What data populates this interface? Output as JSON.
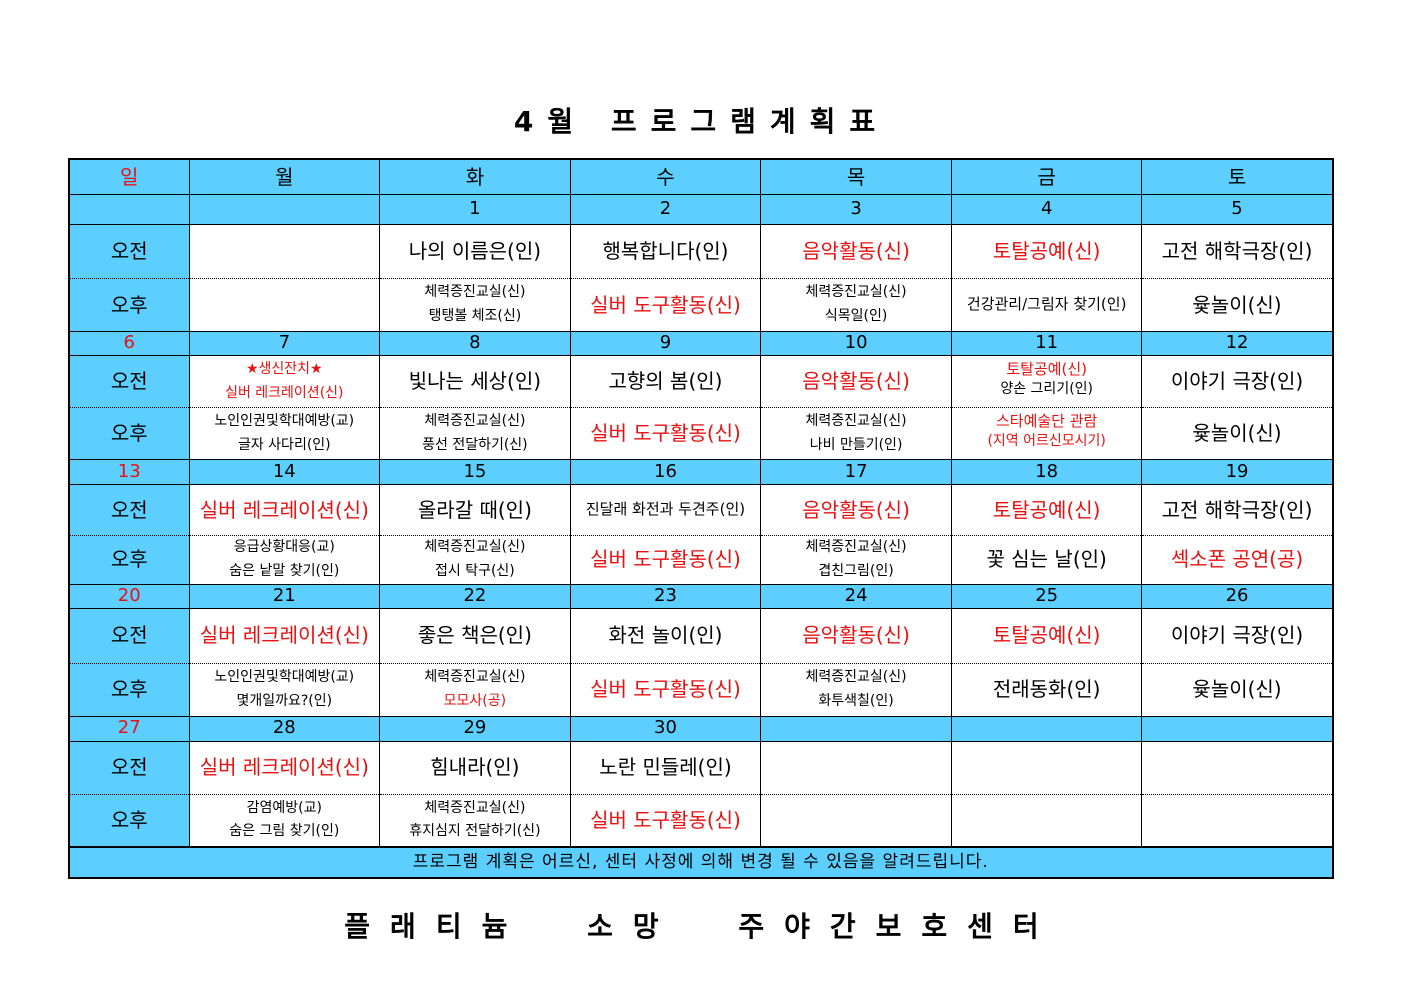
{
  "title": "4월 프로그램계획표",
  "organization": "플래티늄 소망 주야간보호센터",
  "colors": {
    "header_bg": "#5ccfff",
    "accent_red": "#e81010"
  },
  "days": [
    "일",
    "월",
    "화",
    "수",
    "목",
    "금",
    "토"
  ],
  "slot_labels": {
    "am": "오전",
    "pm": "오후"
  },
  "weeks": [
    {
      "dates": [
        "",
        "",
        "1",
        "2",
        "3",
        "4",
        "5"
      ],
      "am": [
        [],
        [],
        [
          {
            "text": "나의 이름은(인)"
          }
        ],
        [
          {
            "text": "행복합니다(인)"
          }
        ],
        [
          {
            "text": "음악활동(신)",
            "red": true
          }
        ],
        [
          {
            "text": "토탈공예(신)",
            "red": true
          }
        ],
        [
          {
            "text": "고전 해학극장(인)"
          }
        ]
      ],
      "pm": [
        [],
        [],
        [
          {
            "text": "체력증진교실(신)"
          },
          {
            "text": "탱탱볼 체조(신)"
          }
        ],
        [
          {
            "text": "실버 도구활동(신)",
            "red": true
          }
        ],
        [
          {
            "text": "체력증진교실(신)"
          },
          {
            "text": "식목일(인)"
          }
        ],
        [
          {
            "text": "건강관리/그림자 찾기(인)",
            "small": true
          }
        ],
        [
          {
            "text": "윷놀이(신)"
          }
        ]
      ]
    },
    {
      "dates": [
        "6",
        "7",
        "8",
        "9",
        "10",
        "11",
        "12"
      ],
      "am": [
        [],
        [
          {
            "text": "★생신잔치★",
            "red": true
          },
          {
            "text": "실버 레크레이션(신)",
            "red": true
          }
        ],
        [
          {
            "text": "빛나는 세상(인)"
          }
        ],
        [
          {
            "text": "고향의 봄(인)"
          }
        ],
        [
          {
            "text": "음악활동(신)",
            "red": true
          }
        ],
        [
          {
            "text": "토탈공예(신)",
            "red": true
          },
          {
            "text": "양손 그리기(인)"
          }
        ],
        [
          {
            "text": "이야기 극장(인)"
          }
        ]
      ],
      "pm": [
        [],
        [
          {
            "text": "노인인권및학대예방(교)"
          },
          {
            "text": "글자 사다리(인)"
          }
        ],
        [
          {
            "text": "체력증진교실(신)"
          },
          {
            "text": "풍선 전달하기(신)"
          }
        ],
        [
          {
            "text": "실버 도구활동(신)",
            "red": true
          }
        ],
        [
          {
            "text": "체력증진교실(신)"
          },
          {
            "text": "나비 만들기(인)"
          }
        ],
        [
          {
            "text": "스타예술단 관람",
            "red": true
          },
          {
            "text": "(지역 어르신모시기)",
            "red": true
          }
        ],
        [
          {
            "text": "윷놀이(신)"
          }
        ]
      ]
    },
    {
      "dates": [
        "13",
        "14",
        "15",
        "16",
        "17",
        "18",
        "19"
      ],
      "am": [
        [],
        [
          {
            "text": "실버 레크레이션(신)",
            "red": true
          }
        ],
        [
          {
            "text": "올라갈 때(인)"
          }
        ],
        [
          {
            "text": "진달래 화전과 두견주(인)",
            "small": true
          }
        ],
        [
          {
            "text": "음악활동(신)",
            "red": true
          }
        ],
        [
          {
            "text": "토탈공예(신)",
            "red": true
          }
        ],
        [
          {
            "text": "고전 해학극장(인)"
          }
        ]
      ],
      "pm": [
        [],
        [
          {
            "text": "응급상황대응(교)"
          },
          {
            "text": "숨은 낱말 찾기(인)"
          }
        ],
        [
          {
            "text": "체력증진교실(신)"
          },
          {
            "text": "접시 탁구(신)"
          }
        ],
        [
          {
            "text": "실버 도구활동(신)",
            "red": true
          }
        ],
        [
          {
            "text": "체력증진교실(신)"
          },
          {
            "text": "겹친그림(인)"
          }
        ],
        [
          {
            "text": "꽃 심는 날(인)"
          }
        ],
        [
          {
            "text": "섹소폰 공연(공)",
            "red": true
          }
        ]
      ]
    },
    {
      "dates": [
        "20",
        "21",
        "22",
        "23",
        "24",
        "25",
        "26"
      ],
      "am": [
        [],
        [
          {
            "text": "실버 레크레이션(신)",
            "red": true
          }
        ],
        [
          {
            "text": "좋은 책은(인)"
          }
        ],
        [
          {
            "text": "화전 놀이(인)"
          }
        ],
        [
          {
            "text": "음악활동(신)",
            "red": true
          }
        ],
        [
          {
            "text": "토탈공예(신)",
            "red": true
          }
        ],
        [
          {
            "text": "이야기 극장(인)"
          }
        ]
      ],
      "pm": [
        [],
        [
          {
            "text": "노인인권및학대예방(교)"
          },
          {
            "text": "몇개일까요?(인)"
          }
        ],
        [
          {
            "text": "체력증진교실(신)"
          },
          {
            "text": "모모사(공)",
            "red": true
          }
        ],
        [
          {
            "text": "실버 도구활동(신)",
            "red": true
          }
        ],
        [
          {
            "text": "체력증진교실(신)"
          },
          {
            "text": "화투색칠(인)"
          }
        ],
        [
          {
            "text": "전래동화(인)"
          }
        ],
        [
          {
            "text": "윷놀이(신)"
          }
        ]
      ]
    },
    {
      "dates": [
        "27",
        "28",
        "29",
        "30",
        "",
        "",
        ""
      ],
      "am": [
        [],
        [
          {
            "text": "실버 레크레이션(신)",
            "red": true
          }
        ],
        [
          {
            "text": "힘내라(인)"
          }
        ],
        [
          {
            "text": "노란 민들레(인)"
          }
        ],
        [],
        [],
        []
      ],
      "pm": [
        [],
        [
          {
            "text": "감염예방(교)"
          },
          {
            "text": "숨은 그림 찾기(인)"
          }
        ],
        [
          {
            "text": "체력증진교실(신)"
          },
          {
            "text": "휴지심지 전달하기(신)"
          }
        ],
        [
          {
            "text": "실버 도구활동(신)",
            "red": true
          }
        ],
        [],
        [],
        []
      ]
    }
  ],
  "footer_note": "프로그램 계획은 어르신, 센터 사정에 의해 변경 될 수 있음을 알려드립니다."
}
